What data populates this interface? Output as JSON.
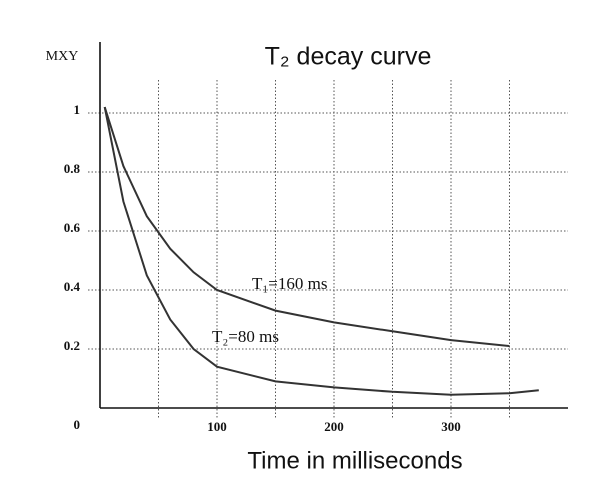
{
  "chart_data": {
    "type": "line",
    "title": "T₂ decay curve",
    "x_label": "Time in milliseconds",
    "y_label": "MXY",
    "xlim": [
      0,
      400
    ],
    "ylim": [
      0,
      1.2
    ],
    "xticks": [
      0,
      100,
      200,
      300
    ],
    "minor_xticks": [
      50,
      150,
      250,
      350
    ],
    "yticks": [
      0,
      0.2,
      0.4,
      0.6,
      0.8,
      1
    ],
    "grid": true,
    "series": [
      {
        "name": "T₁=160 ms",
        "color": "#333333",
        "x": [
          4,
          20,
          40,
          60,
          80,
          100,
          150,
          200,
          250,
          300,
          350
        ],
        "values": [
          1.02,
          0.82,
          0.65,
          0.54,
          0.46,
          0.4,
          0.33,
          0.29,
          0.26,
          0.23,
          0.21
        ]
      },
      {
        "name": "T₂=80 ms",
        "color": "#333333",
        "x": [
          4,
          20,
          40,
          60,
          80,
          100,
          150,
          200,
          250,
          300,
          350,
          375
        ],
        "values": [
          1.02,
          0.7,
          0.45,
          0.3,
          0.2,
          0.14,
          0.09,
          0.07,
          0.055,
          0.045,
          0.05,
          0.06
        ]
      }
    ]
  }
}
